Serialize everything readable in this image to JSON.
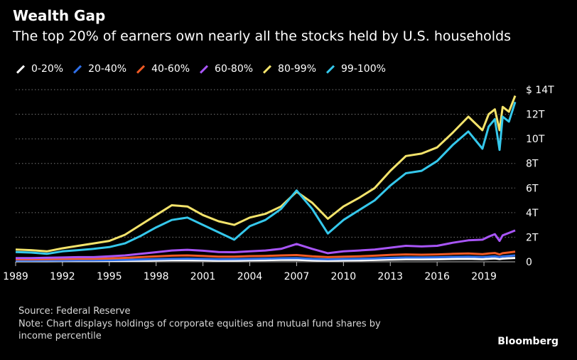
{
  "header": {
    "title": "Wealth Gap",
    "subtitle": "The top 20% of earners own nearly all the stocks held by U.S. households"
  },
  "footer": {
    "source": "Source: Federal Reserve",
    "note_line1": "Note: Chart displays holdings of corporate equities and mutual fund shares by",
    "note_line2": "income percentile",
    "brand": "Bloomberg"
  },
  "chart_data": {
    "type": "line",
    "title": "Wealth Gap",
    "subtitle": "The top 20% of earners own nearly all the stocks held by U.S. households",
    "xlabel": "",
    "ylabel": "",
    "x_ticks": [
      "1989",
      "1992",
      "1995",
      "1998",
      "2001",
      "2004",
      "2007",
      "2010",
      "2013",
      "2016",
      "2019"
    ],
    "y_ticks": [
      "0",
      "2T",
      "4T",
      "6T",
      "8T",
      "10T",
      "12T",
      "$ 14T"
    ],
    "xlim": [
      1989,
      2021
    ],
    "ylim": [
      0,
      14
    ],
    "grid": "horizontal dotted",
    "legend_position": "top-left",
    "x": [
      1989,
      1990,
      1991,
      1992,
      1993,
      1994,
      1995,
      1996,
      1997,
      1998,
      1999,
      2000,
      2001,
      2002,
      2003,
      2004,
      2005,
      2006,
      2007,
      2008,
      2009,
      2010,
      2011,
      2012,
      2013,
      2014,
      2015,
      2016,
      2017,
      2018,
      2018.9,
      2019.3,
      2019.7,
      2020.0,
      2020.2,
      2020.6,
      2021.0
    ],
    "series": [
      {
        "name": "0-20%",
        "color": "#ffffff",
        "values": [
          0.05,
          0.05,
          0.05,
          0.06,
          0.06,
          0.06,
          0.07,
          0.08,
          0.1,
          0.12,
          0.14,
          0.14,
          0.13,
          0.11,
          0.11,
          0.13,
          0.14,
          0.16,
          0.16,
          0.12,
          0.1,
          0.12,
          0.13,
          0.15,
          0.18,
          0.2,
          0.2,
          0.21,
          0.23,
          0.25,
          0.22,
          0.25,
          0.27,
          0.22,
          0.26,
          0.29,
          0.31
        ]
      },
      {
        "name": "20-40%",
        "color": "#2f6fe8",
        "values": [
          0.1,
          0.1,
          0.11,
          0.11,
          0.12,
          0.12,
          0.14,
          0.16,
          0.19,
          0.22,
          0.25,
          0.26,
          0.24,
          0.21,
          0.22,
          0.24,
          0.26,
          0.29,
          0.3,
          0.24,
          0.2,
          0.23,
          0.25,
          0.28,
          0.32,
          0.35,
          0.35,
          0.37,
          0.4,
          0.42,
          0.38,
          0.42,
          0.45,
          0.38,
          0.44,
          0.48,
          0.52
        ]
      },
      {
        "name": "40-60%",
        "color": "#f05a24",
        "values": [
          0.2,
          0.2,
          0.22,
          0.23,
          0.25,
          0.25,
          0.28,
          0.32,
          0.38,
          0.44,
          0.5,
          0.52,
          0.48,
          0.42,
          0.42,
          0.46,
          0.48,
          0.52,
          0.55,
          0.45,
          0.38,
          0.42,
          0.45,
          0.5,
          0.56,
          0.6,
          0.58,
          0.6,
          0.65,
          0.68,
          0.62,
          0.68,
          0.72,
          0.6,
          0.7,
          0.76,
          0.82
        ]
      },
      {
        "name": "60-80%",
        "color": "#a855f7",
        "values": [
          0.3,
          0.3,
          0.33,
          0.35,
          0.38,
          0.38,
          0.45,
          0.52,
          0.65,
          0.78,
          0.92,
          0.98,
          0.9,
          0.8,
          0.78,
          0.85,
          0.92,
          1.05,
          1.45,
          1.05,
          0.7,
          0.85,
          0.92,
          1.0,
          1.15,
          1.3,
          1.25,
          1.3,
          1.55,
          1.75,
          1.8,
          2.05,
          2.25,
          1.7,
          2.15,
          2.35,
          2.55
        ]
      },
      {
        "name": "80-99%",
        "color": "#f3e36b",
        "values": [
          1.0,
          0.95,
          0.85,
          1.1,
          1.3,
          1.5,
          1.7,
          2.2,
          3.0,
          3.8,
          4.6,
          4.5,
          3.8,
          3.3,
          3.0,
          3.6,
          3.9,
          4.5,
          5.7,
          4.8,
          3.5,
          4.5,
          5.2,
          6.0,
          7.4,
          8.6,
          8.8,
          9.3,
          10.5,
          11.8,
          10.7,
          12.0,
          12.4,
          10.7,
          12.6,
          12.2,
          13.5
        ]
      },
      {
        "name": "99-100%",
        "color": "#35c8ec",
        "values": [
          0.8,
          0.75,
          0.65,
          0.85,
          0.95,
          1.05,
          1.2,
          1.5,
          2.1,
          2.8,
          3.4,
          3.6,
          3.0,
          2.4,
          1.8,
          2.9,
          3.4,
          4.3,
          5.8,
          4.3,
          2.3,
          3.4,
          4.2,
          5.0,
          6.2,
          7.2,
          7.4,
          8.2,
          9.5,
          10.6,
          9.2,
          11.0,
          11.6,
          9.1,
          11.8,
          11.4,
          13.0
        ]
      }
    ]
  }
}
